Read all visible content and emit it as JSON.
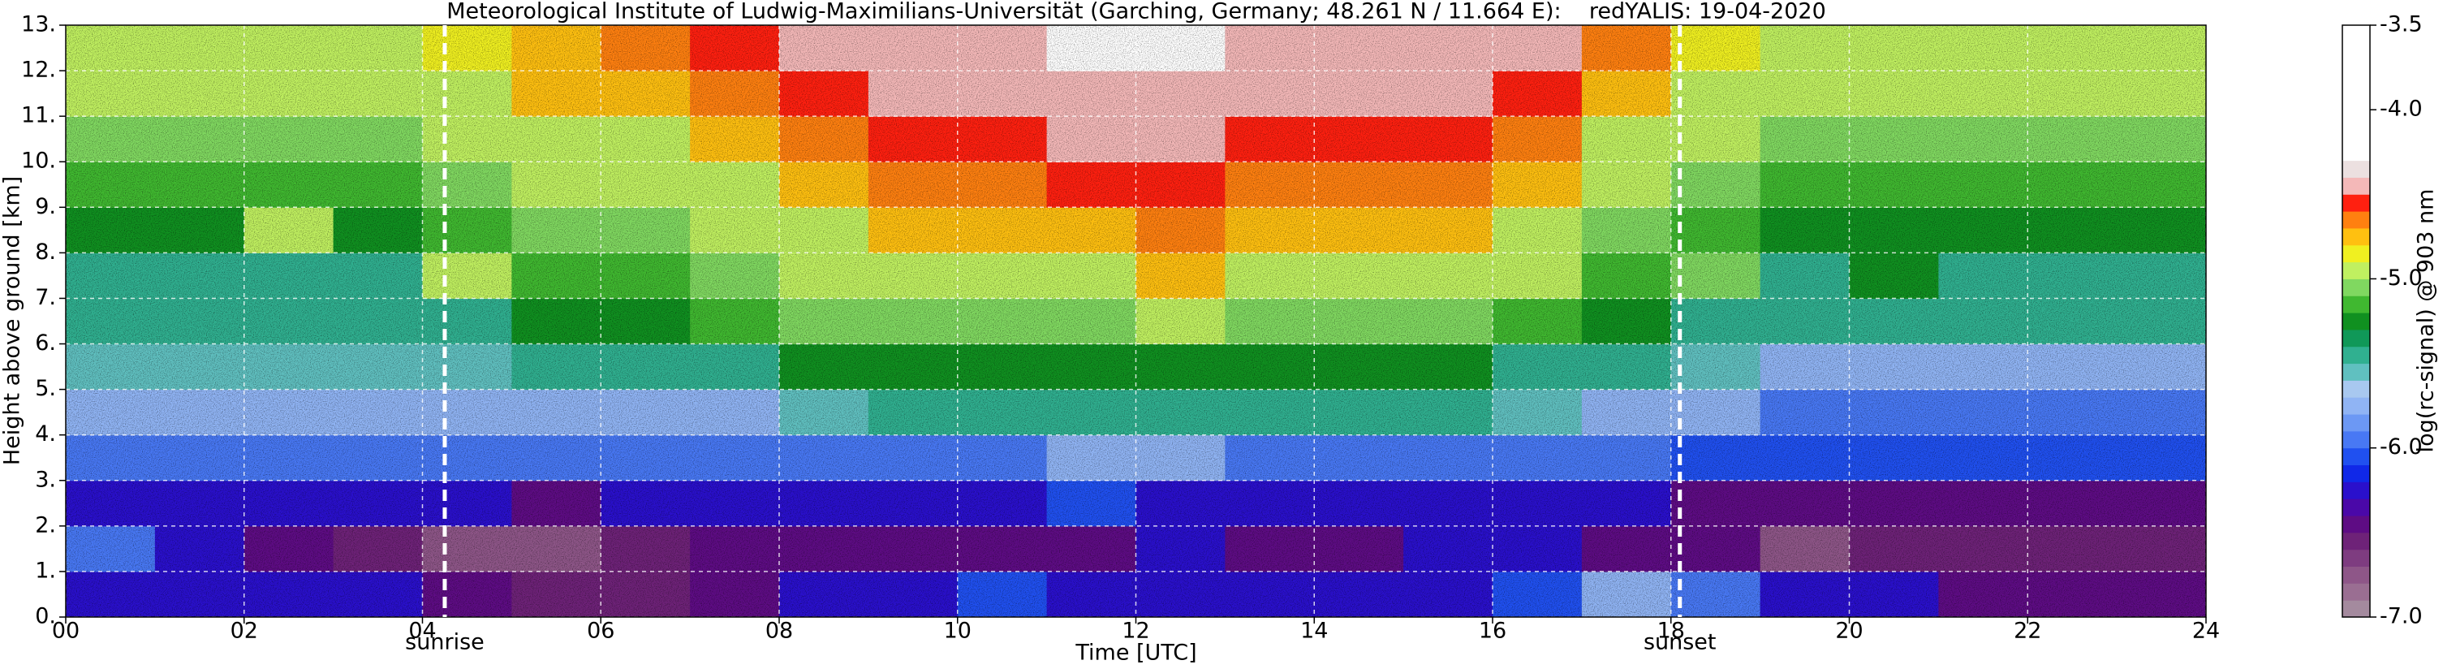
{
  "chart_data": {
    "type": "heatmap",
    "title": "Meteorological Institute of Ludwig-Maximilians-Universität (Garching, Germany; 48.261 N / 11.664 E):    redYALIS: 19-04-2020",
    "xlabel": "Time [UTC]",
    "ylabel": "Height above ground [km]",
    "colorbar_label": "log(rc-signal) @ 903 nm",
    "x_edges": [
      0,
      1,
      2,
      3,
      4,
      5,
      6,
      7,
      8,
      9,
      10,
      11,
      12,
      13,
      14,
      15,
      16,
      17,
      18,
      19,
      20,
      21,
      22,
      23,
      24
    ],
    "y_edges": [
      0,
      1,
      2,
      3,
      4,
      5,
      6,
      7,
      8,
      9,
      10,
      11,
      12,
      13
    ],
    "z": [
      [
        -6.2,
        -6.2,
        -6.3,
        -6.3,
        -6.4,
        -6.6,
        -6.6,
        -6.5,
        -6.3,
        -6.2,
        -6.1,
        -6.2,
        -6.2,
        -6.2,
        -6.3,
        -6.2,
        -6.1,
        -5.7,
        -6.0,
        -6.2,
        -6.3,
        -6.4,
        -6.4,
        -6.4
      ],
      [
        -6.0,
        -6.3,
        -6.5,
        -6.6,
        -6.7,
        -6.7,
        -6.6,
        -6.5,
        -6.5,
        -6.4,
        -6.4,
        -6.4,
        -6.3,
        -6.4,
        -6.5,
        -6.3,
        -6.3,
        -6.4,
        -6.5,
        -6.7,
        -6.6,
        -6.6,
        -6.6,
        -6.6
      ],
      [
        -6.2,
        -6.3,
        -6.3,
        -6.3,
        -6.3,
        -6.4,
        -6.3,
        -6.3,
        -6.2,
        -6.2,
        -6.2,
        -6.1,
        -6.2,
        -6.2,
        -6.2,
        -6.2,
        -6.2,
        -6.3,
        -6.4,
        -6.5,
        -6.4,
        -6.5,
        -6.5,
        -6.4
      ],
      [
        -6.0,
        -6.0,
        -6.0,
        -6.0,
        -6.0,
        -6.0,
        -6.0,
        -6.0,
        -5.9,
        -5.9,
        -5.9,
        -5.8,
        -5.8,
        -5.9,
        -5.9,
        -5.9,
        -6.0,
        -6.0,
        -6.1,
        -6.1,
        -6.1,
        -6.1,
        -6.1,
        -6.1
      ],
      [
        -5.8,
        -5.8,
        -5.8,
        -5.8,
        -5.8,
        -5.8,
        -5.7,
        -5.7,
        -5.6,
        -5.5,
        -5.5,
        -5.5,
        -5.5,
        -5.5,
        -5.5,
        -5.5,
        -5.6,
        -5.7,
        -5.8,
        -5.9,
        -5.9,
        -5.9,
        -5.9,
        -5.9
      ],
      [
        -5.6,
        -5.6,
        -5.6,
        -5.6,
        -5.6,
        -5.5,
        -5.5,
        -5.4,
        -5.3,
        -5.3,
        -5.3,
        -5.3,
        -5.3,
        -5.3,
        -5.3,
        -5.3,
        -5.4,
        -5.5,
        -5.6,
        -5.7,
        -5.7,
        -5.7,
        -5.7,
        -5.7
      ],
      [
        -5.5,
        -5.5,
        -5.5,
        -5.5,
        -5.4,
        -5.3,
        -5.3,
        -5.2,
        -5.1,
        -5.1,
        -5.1,
        -5.1,
        -5.0,
        -5.1,
        -5.1,
        -5.1,
        -5.2,
        -5.3,
        -5.4,
        -5.5,
        -5.5,
        -5.5,
        -5.5,
        -5.5
      ],
      [
        -5.4,
        -5.4,
        -5.4,
        -5.4,
        -5.0,
        -5.2,
        -5.2,
        -5.1,
        -5.0,
        -4.9,
        -4.9,
        -4.9,
        -4.8,
        -4.9,
        -4.9,
        -4.9,
        -5.0,
        -5.2,
        -5.1,
        -5.4,
        -5.3,
        -5.4,
        -5.4,
        -5.4
      ],
      [
        -5.3,
        -5.3,
        -5.0,
        -5.3,
        -5.2,
        -5.1,
        -5.1,
        -5.0,
        -4.9,
        -4.8,
        -4.8,
        -4.8,
        -4.7,
        -4.8,
        -4.8,
        -4.8,
        -4.9,
        -5.1,
        -5.2,
        -5.3,
        -5.3,
        -5.3,
        -5.3,
        -5.3
      ],
      [
        -5.2,
        -5.2,
        -5.2,
        -5.2,
        -5.1,
        -5.0,
        -5.0,
        -4.9,
        -4.8,
        -4.7,
        -4.7,
        -4.6,
        -4.6,
        -4.7,
        -4.7,
        -4.7,
        -4.8,
        -5.0,
        -5.1,
        -5.2,
        -5.2,
        -5.2,
        -5.2,
        -5.2
      ],
      [
        -5.1,
        -5.1,
        -5.1,
        -5.1,
        -5.0,
        -4.9,
        -4.9,
        -4.8,
        -4.7,
        -4.6,
        -4.6,
        -4.5,
        -4.5,
        -4.6,
        -4.6,
        -4.6,
        -4.7,
        -4.9,
        -5.0,
        -5.1,
        -5.1,
        -5.1,
        -5.1,
        -5.1
      ],
      [
        -5.0,
        -5.0,
        -5.0,
        -5.0,
        -4.9,
        -4.8,
        -4.8,
        -4.7,
        -4.6,
        -4.5,
        -4.5,
        -4.4,
        -4.4,
        -4.5,
        -4.5,
        -4.5,
        -4.6,
        -4.8,
        -4.9,
        -5.0,
        -5.0,
        -5.0,
        -5.0,
        -5.0
      ],
      [
        -4.95,
        -4.95,
        -4.95,
        -4.95,
        -4.85,
        -4.75,
        -4.7,
        -4.6,
        -4.5,
        -4.4,
        -4.4,
        -4.3,
        -4.3,
        -4.4,
        -4.4,
        -4.4,
        -4.5,
        -4.7,
        -4.85,
        -4.95,
        -4.95,
        -4.95,
        -4.95,
        -4.95
      ]
    ],
    "xlim": [
      0,
      24
    ],
    "ylim": [
      0,
      13
    ],
    "xticks": [
      {
        "value": 0,
        "label": "00"
      },
      {
        "value": 2,
        "label": "02"
      },
      {
        "value": 4,
        "label": "04"
      },
      {
        "value": 6,
        "label": "06"
      },
      {
        "value": 8,
        "label": "08"
      },
      10,
      12,
      14,
      16,
      18,
      20,
      22,
      24
    ],
    "yticks": [
      {
        "value": 0,
        "label": "0."
      },
      {
        "value": 1,
        "label": "1."
      },
      {
        "value": 2,
        "label": "2."
      },
      {
        "value": 3,
        "label": "3."
      },
      {
        "value": 4,
        "label": "4."
      },
      {
        "value": 5,
        "label": "5."
      },
      {
        "value": 6,
        "label": "6."
      },
      {
        "value": 7,
        "label": "7."
      },
      {
        "value": 8,
        "label": "8."
      },
      {
        "value": 9,
        "label": "9."
      },
      {
        "value": 10,
        "label": "10."
      },
      {
        "value": 11,
        "label": "11."
      },
      {
        "value": 12,
        "label": "12."
      },
      {
        "value": 13,
        "label": "13."
      }
    ],
    "clim": [
      -7.0,
      -3.5
    ],
    "cticks": [
      {
        "value": -7,
        "label": "-7.0"
      },
      {
        "value": -6,
        "label": "-6.0"
      },
      {
        "value": -5,
        "label": "-5.0"
      },
      {
        "value": -4,
        "label": "-4.0"
      },
      {
        "value": -3.5,
        "label": "-3.5"
      }
    ],
    "colors": [
      "#a48a9e",
      "#9a6e92",
      "#8e5688",
      "#7e3c80",
      "#6e2278",
      "#5e0c84",
      "#4a08a8",
      "#2a10cc",
      "#1028e8",
      "#2050f0",
      "#4878f4",
      "#6c98f4",
      "#90b4f4",
      "#a8c8f0",
      "#60c0c0",
      "#30b090",
      "#109858",
      "#109020",
      "#40b830",
      "#80d860",
      "#c0f060",
      "#f0f020",
      "#ffc010",
      "#ff8010",
      "#ff2010",
      "#f4b8b8",
      "#ece0e0",
      "#ffffff",
      "#ffffff",
      "#ffffff",
      "#ffffff",
      "#ffffff",
      "#ffffff",
      "#ffffff",
      "#ffffff"
    ],
    "grid": true,
    "annotations": [
      {
        "text": "sunrise",
        "x": 4.25
      },
      {
        "text": "sunset",
        "x": 18.1
      }
    ]
  }
}
